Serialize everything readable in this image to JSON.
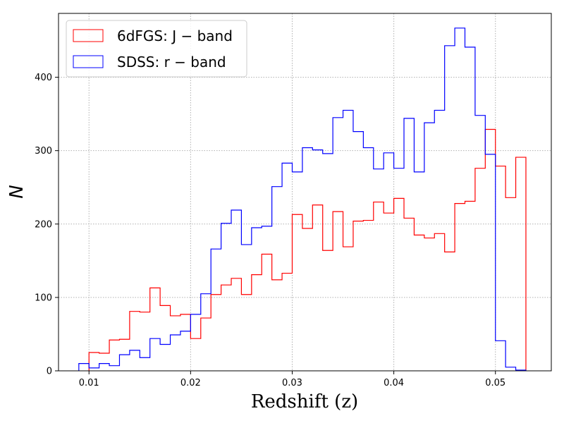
{
  "chart_data": {
    "type": "histogram",
    "xlabel": "Redshift (z)",
    "ylabel": "N",
    "xlim": [
      0.007,
      0.0555
    ],
    "ylim": [
      0,
      487
    ],
    "grid": true,
    "legend_position": "top-left",
    "x_ticks": [
      0.01,
      0.02,
      0.03,
      0.04,
      0.05
    ],
    "x_tick_labels": [
      "0.01",
      "0.02",
      "0.03",
      "0.04",
      "0.05"
    ],
    "y_ticks": [
      0,
      100,
      200,
      300,
      400
    ],
    "y_tick_labels": [
      "0",
      "100",
      "200",
      "300",
      "400"
    ],
    "bin_width": 0.001,
    "series": [
      {
        "name": "6dFGS: J − band",
        "color": "#ff0000",
        "start": 0.01,
        "values": [
          25,
          24,
          42,
          43,
          81,
          80,
          113,
          89,
          75,
          77,
          44,
          72,
          104,
          117,
          126,
          104,
          131,
          159,
          124,
          133,
          213,
          194,
          226,
          164,
          217,
          169,
          204,
          205,
          230,
          215,
          235,
          208,
          185,
          181,
          187,
          162,
          228,
          231,
          276,
          329,
          279,
          236,
          291
        ]
      },
      {
        "name": "SDSS: r − band",
        "color": "#0000ff",
        "start": 0.009,
        "values": [
          10,
          4,
          10,
          7,
          22,
          28,
          18,
          44,
          36,
          49,
          54,
          77,
          105,
          166,
          201,
          219,
          172,
          195,
          197,
          251,
          283,
          271,
          304,
          301,
          296,
          345,
          355,
          326,
          304,
          275,
          297,
          276,
          344,
          271,
          338,
          355,
          443,
          467,
          441,
          348,
          295,
          41,
          5,
          1
        ]
      }
    ]
  }
}
